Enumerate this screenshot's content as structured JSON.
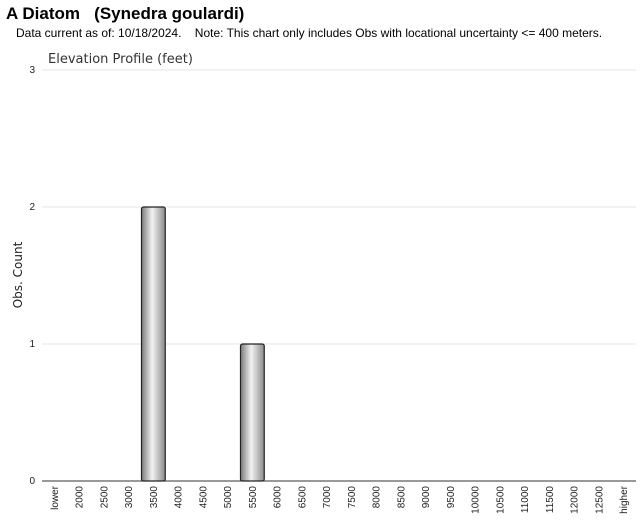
{
  "header": {
    "title": "A Diatom   (Synedra goulardi)",
    "subtitle": "Data current as of: 10/18/2024.    Note: This chart only includes Obs with locational uncertainty <= 400 meters."
  },
  "chart_data": {
    "type": "bar",
    "title": "Elevation Profile (feet)",
    "xlabel": "",
    "ylabel": "Obs. Count",
    "ylim": [
      0,
      3
    ],
    "yticks": [
      0,
      1,
      2,
      3
    ],
    "grid": true,
    "legend": "none",
    "bar_color": "#b0b0b0",
    "categories": [
      "lower",
      "2000",
      "2500",
      "3000",
      "3500",
      "4000",
      "4500",
      "5000",
      "5500",
      "6000",
      "6500",
      "7000",
      "7500",
      "8000",
      "8500",
      "9000",
      "9500",
      "10000",
      "10500",
      "11000",
      "11500",
      "12000",
      "12500",
      "higher"
    ],
    "values": [
      0,
      0,
      0,
      0,
      2,
      0,
      0,
      0,
      1,
      0,
      0,
      0,
      0,
      0,
      0,
      0,
      0,
      0,
      0,
      0,
      0,
      0,
      0,
      0
    ]
  }
}
